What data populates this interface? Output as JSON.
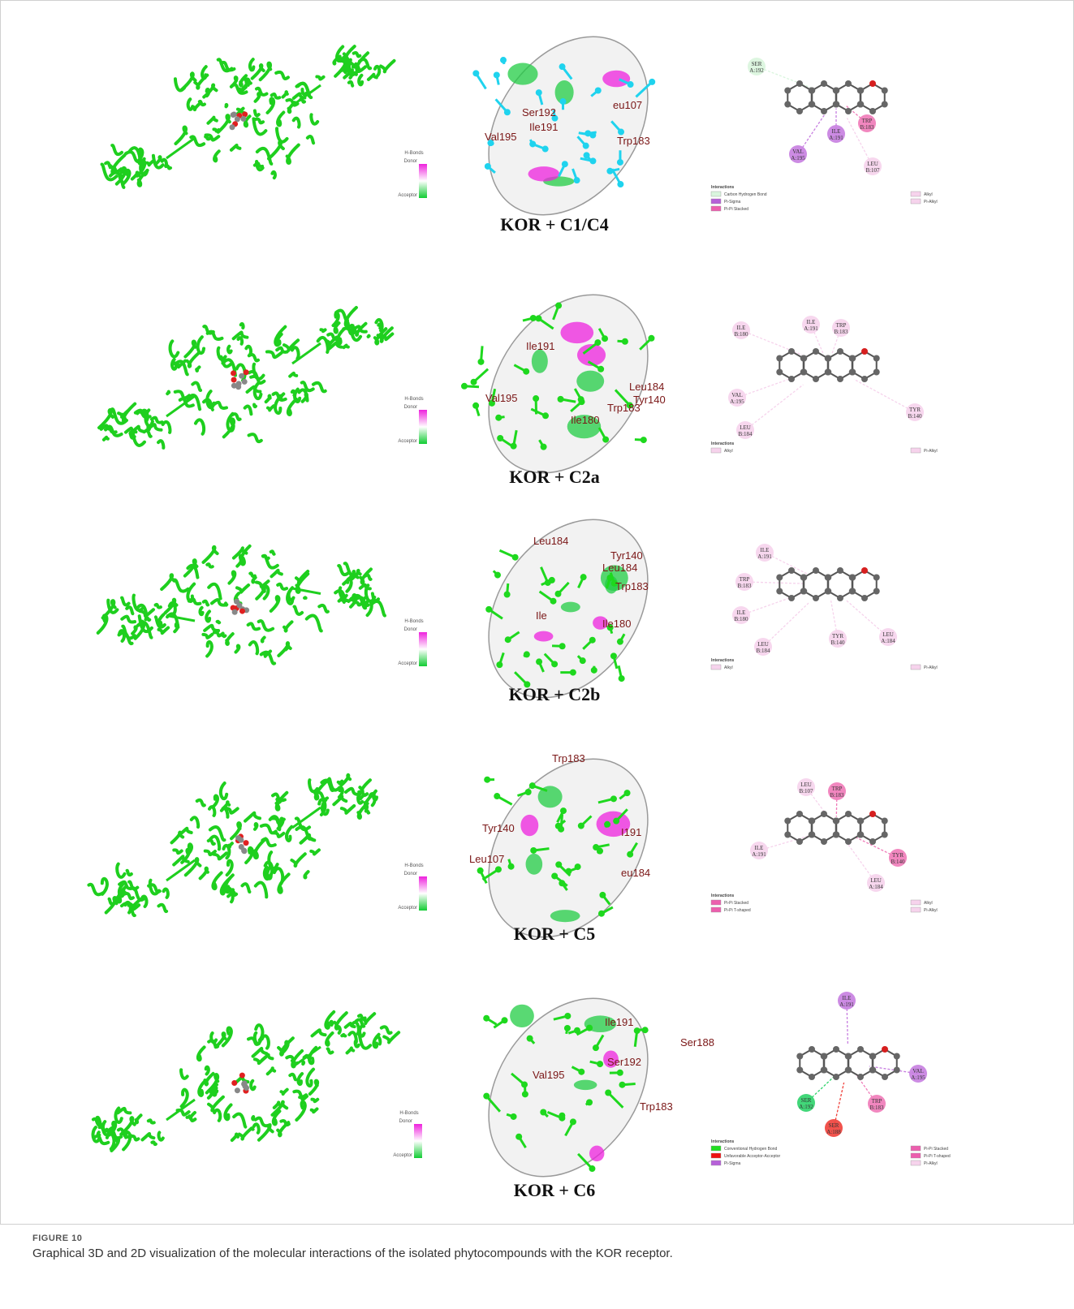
{
  "figure": {
    "label": "FIGURE 10",
    "caption": "Graphical 3D and 2D visualization of the molecular interactions of the isolated phytocompounds with the KOR receptor."
  },
  "hbond_legend": {
    "title": "H-Bonds",
    "donor": "Donor",
    "acceptor": "Acceptor"
  },
  "interactions_title": "Interactions",
  "panels": [
    {
      "caption": "KOR + C1/C4",
      "stick_color": "#1fd3ee",
      "residues_3d": [
        "Ile191",
        "Ser192",
        "eu107",
        "Val195",
        "Trp183"
      ],
      "residues_2d": [
        {
          "code": "SER",
          "id": "A:192",
          "color": "#d9f5dd"
        },
        {
          "code": "ILE",
          "id": "A:191",
          "color": "#c77ee0"
        },
        {
          "code": "TRP",
          "id": "B:183",
          "color": "#f07ab8"
        },
        {
          "code": "VAL",
          "id": "A:195",
          "color": "#c77ee0"
        },
        {
          "code": "LEU",
          "id": "B:107",
          "color": "#f6d3ec"
        }
      ],
      "legend_left": [
        {
          "label": "Carbon Hydrogen Bond",
          "color": "#d9f5dd"
        },
        {
          "label": "Pi-Sigma",
          "color": "#b660d8"
        },
        {
          "label": "Pi-Pi Stacked",
          "color": "#ec5fae"
        }
      ],
      "legend_right": [
        {
          "label": "Alkyl",
          "color": "#f6d3ec"
        },
        {
          "label": "Pi-Alkyl",
          "color": "#f6d3ec"
        }
      ]
    },
    {
      "caption": "KOR + C2a",
      "stick_color": "#1ed81e",
      "residues_3d": [
        "Ile191",
        "Leu184",
        "Tyr140",
        "Val195",
        "Trp183",
        "Ile180"
      ],
      "residues_2d": [
        {
          "code": "ILE",
          "id": "B:180",
          "color": "#f6d3ec"
        },
        {
          "code": "ILE",
          "id": "A:191",
          "color": "#f6d3ec"
        },
        {
          "code": "TRP",
          "id": "B:183",
          "color": "#f6d3ec"
        },
        {
          "code": "VAL",
          "id": "A:195",
          "color": "#f6d3ec"
        },
        {
          "code": "LEU",
          "id": "B:184",
          "color": "#f6d3ec"
        },
        {
          "code": "TYR",
          "id": "B:140",
          "color": "#f6d3ec"
        }
      ],
      "legend_left": [
        {
          "label": "Alkyl",
          "color": "#f6d3ec"
        }
      ],
      "legend_right": [
        {
          "label": "Pi-Alkyl",
          "color": "#f6d3ec"
        }
      ]
    },
    {
      "caption": "KOR + C2b",
      "stick_color": "#1ed81e",
      "residues_3d": [
        "Leu184",
        "Tyr140",
        "Leu184",
        "Trp183",
        "Ile",
        "Ile180"
      ],
      "residues_2d": [
        {
          "code": "ILE",
          "id": "A:191",
          "color": "#f6d3ec"
        },
        {
          "code": "TRP",
          "id": "B:183",
          "color": "#f6d3ec"
        },
        {
          "code": "ILE",
          "id": "B:180",
          "color": "#f6d3ec"
        },
        {
          "code": "LEU",
          "id": "B:184",
          "color": "#f6d3ec"
        },
        {
          "code": "TYR",
          "id": "B:140",
          "color": "#f6d3ec"
        },
        {
          "code": "LEU",
          "id": "A:184",
          "color": "#f6d3ec"
        }
      ],
      "legend_left": [
        {
          "label": "Alkyl",
          "color": "#f6d3ec"
        }
      ],
      "legend_right": [
        {
          "label": "Pi-Alkyl",
          "color": "#f6d3ec"
        }
      ]
    },
    {
      "caption": "KOR + C5",
      "stick_color": "#1ed81e",
      "residues_3d": [
        "Trp183",
        "Tyr140",
        "Leu107",
        "I191",
        "eu184"
      ],
      "residues_2d": [
        {
          "code": "LEU",
          "id": "B:107",
          "color": "#f6d3ec"
        },
        {
          "code": "TRP",
          "id": "B:183",
          "color": "#f07ab8"
        },
        {
          "code": "ILE",
          "id": "A:191",
          "color": "#f6d3ec"
        },
        {
          "code": "TYR",
          "id": "B:140",
          "color": "#f07ab8"
        },
        {
          "code": "LEU",
          "id": "A:184",
          "color": "#f6d3ec"
        }
      ],
      "legend_left": [
        {
          "label": "Pi-Pi Stacked",
          "color": "#ec5fae"
        },
        {
          "label": "Pi-Pi T-shaped",
          "color": "#ec5fae"
        }
      ],
      "legend_right": [
        {
          "label": "Alkyl",
          "color": "#f6d3ec"
        },
        {
          "label": "Pi-Alkyl",
          "color": "#f6d3ec"
        }
      ]
    },
    {
      "caption": "KOR + C6",
      "stick_color": "#1ed81e",
      "residues_3d": [
        "Ile191",
        "Ser188",
        "Ser192",
        "Val195",
        "Trp183"
      ],
      "residues_2d": [
        {
          "code": "ILE",
          "id": "A:191",
          "color": "#c77ee0"
        },
        {
          "code": "VAL",
          "id": "A:195",
          "color": "#c77ee0"
        },
        {
          "code": "SER",
          "id": "A:192",
          "color": "#2ed36a"
        },
        {
          "code": "TRP",
          "id": "B:183",
          "color": "#f07ab8"
        },
        {
          "code": "SER",
          "id": "A:188",
          "color": "#f0403a"
        }
      ],
      "legend_left": [
        {
          "label": "Conventional Hydrogen Bond",
          "color": "#22dd22"
        },
        {
          "label": "Unfavorable Acceptor-Acceptor",
          "color": "#ee1111"
        },
        {
          "label": "Pi-Sigma",
          "color": "#b660d8"
        }
      ],
      "legend_right": [
        {
          "label": "Pi-Pi Stacked",
          "color": "#ec5fae"
        },
        {
          "label": "Pi-Pi T-shaped",
          "color": "#ec5fae"
        },
        {
          "label": "Pi-Alkyl",
          "color": "#f6d3ec"
        }
      ]
    }
  ]
}
